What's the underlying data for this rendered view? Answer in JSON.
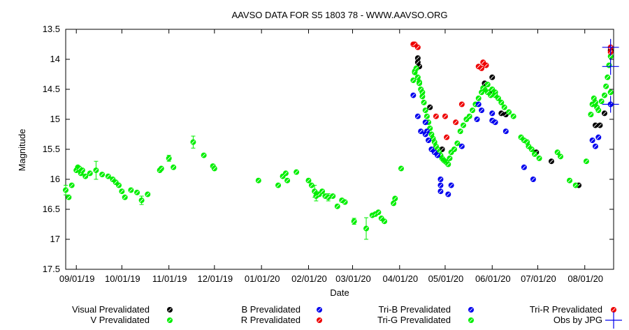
{
  "chart_data": {
    "type": "scatter",
    "title": "AAVSO DATA FOR S5 1803 78 - WWW.AAVSO.ORG",
    "xlabel": "Date",
    "ylabel": "Magnitude",
    "x_type": "date",
    "xlim": [
      "2019-08-25",
      "2020-08-20"
    ],
    "ylim": [
      17.5,
      13.5
    ],
    "y_inverted": true,
    "x_ticks": [
      {
        "date": "2019-09-01",
        "label": "09/01/19"
      },
      {
        "date": "2019-10-01",
        "label": "10/01/19"
      },
      {
        "date": "2019-11-01",
        "label": "11/01/19"
      },
      {
        "date": "2019-12-01",
        "label": "12/01/19"
      },
      {
        "date": "2020-01-01",
        "label": "01/01/20"
      },
      {
        "date": "2020-02-01",
        "label": "02/01/20"
      },
      {
        "date": "2020-03-01",
        "label": "03/01/20"
      },
      {
        "date": "2020-04-01",
        "label": "04/01/20"
      },
      {
        "date": "2020-05-01",
        "label": "05/01/20"
      },
      {
        "date": "2020-06-01",
        "label": "06/01/20"
      },
      {
        "date": "2020-07-01",
        "label": "07/01/20"
      },
      {
        "date": "2020-08-01",
        "label": "08/01/20"
      }
    ],
    "y_ticks": [
      {
        "value": 13.5,
        "label": "13.5"
      },
      {
        "value": 14,
        "label": "14"
      },
      {
        "value": 14.5,
        "label": "14.5"
      },
      {
        "value": 15,
        "label": "15"
      },
      {
        "value": 15.5,
        "label": "15.5"
      },
      {
        "value": 16,
        "label": "16"
      },
      {
        "value": 16.5,
        "label": "16.5"
      },
      {
        "value": 17,
        "label": "17"
      },
      {
        "value": 17.5,
        "label": "17.5"
      }
    ],
    "grid": false,
    "legend_position": "bottom",
    "series": [
      {
        "name": "Visual Prevalidated",
        "color": "#000000",
        "points": [
          [
            "2020-04-13",
            13.98
          ],
          [
            "2020-04-13",
            14.05
          ],
          [
            "2020-04-14",
            14.12
          ],
          [
            "2020-04-21",
            14.8
          ],
          [
            "2020-04-29",
            15.5
          ],
          [
            "2020-05-27",
            14.4
          ],
          [
            "2020-05-30",
            14.55
          ],
          [
            "2020-06-01",
            14.3
          ],
          [
            "2020-06-07",
            14.9
          ],
          [
            "2020-06-10",
            14.92
          ],
          [
            "2020-06-30",
            15.55
          ],
          [
            "2020-07-10",
            15.7
          ],
          [
            "2020-07-28",
            16.1
          ],
          [
            "2020-08-08",
            15.1
          ],
          [
            "2020-08-11",
            15.1
          ],
          [
            "2020-08-14",
            14.9
          ],
          [
            "2020-08-18",
            13.85
          ]
        ]
      },
      {
        "name": "V Prevalidated",
        "color": "#00ee00",
        "points": [
          [
            "2019-08-25",
            16.18
          ],
          [
            "2019-08-27",
            16.3
          ],
          [
            "2019-08-29",
            16.1
          ],
          [
            "2019-09-01",
            15.85
          ],
          [
            "2019-09-02",
            15.8
          ],
          [
            "2019-09-03",
            15.82
          ],
          [
            "2019-09-04",
            15.9
          ],
          [
            "2019-09-05",
            15.85
          ],
          [
            "2019-09-07",
            15.95
          ],
          [
            "2019-09-10",
            15.9
          ],
          [
            "2019-09-14",
            15.85
          ],
          [
            "2019-09-18",
            15.92
          ],
          [
            "2019-09-22",
            15.95
          ],
          [
            "2019-09-25",
            16.0
          ],
          [
            "2019-09-27",
            16.05
          ],
          [
            "2019-09-29",
            16.1
          ],
          [
            "2019-10-01",
            16.2
          ],
          [
            "2019-10-03",
            16.3
          ],
          [
            "2019-10-07",
            16.18
          ],
          [
            "2019-10-11",
            16.22
          ],
          [
            "2019-10-14",
            16.35
          ],
          [
            "2019-10-18",
            16.25
          ],
          [
            "2019-10-26",
            15.85
          ],
          [
            "2019-10-27",
            15.82
          ],
          [
            "2019-11-01",
            15.65
          ],
          [
            "2019-11-04",
            15.8
          ],
          [
            "2019-11-17",
            15.38
          ],
          [
            "2019-11-24",
            15.6
          ],
          [
            "2019-11-30",
            15.78
          ],
          [
            "2019-12-01",
            15.82
          ],
          [
            "2019-12-30",
            16.02
          ],
          [
            "2020-01-12",
            16.1
          ],
          [
            "2020-01-15",
            15.95
          ],
          [
            "2020-01-17",
            15.9
          ],
          [
            "2020-01-18",
            16.02
          ],
          [
            "2020-01-24",
            15.88
          ],
          [
            "2020-02-01",
            16.02
          ],
          [
            "2020-02-03",
            16.1
          ],
          [
            "2020-02-05",
            16.2
          ],
          [
            "2020-02-06",
            16.28
          ],
          [
            "2020-02-08",
            16.25
          ],
          [
            "2020-02-10",
            16.2
          ],
          [
            "2020-02-12",
            16.28
          ],
          [
            "2020-02-14",
            16.3
          ],
          [
            "2020-02-17",
            16.28
          ],
          [
            "2020-02-20",
            16.45
          ],
          [
            "2020-02-23",
            16.35
          ],
          [
            "2020-02-25",
            16.38
          ],
          [
            "2020-03-02",
            16.7
          ],
          [
            "2020-03-10",
            16.82
          ],
          [
            "2020-03-14",
            16.6
          ],
          [
            "2020-03-16",
            16.58
          ],
          [
            "2020-03-18",
            16.55
          ],
          [
            "2020-03-20",
            16.65
          ],
          [
            "2020-03-22",
            16.7
          ],
          [
            "2020-03-28",
            16.4
          ],
          [
            "2020-03-29",
            16.32
          ],
          [
            "2020-04-02",
            15.82
          ],
          [
            "2020-04-10",
            14.35
          ],
          [
            "2020-04-11",
            14.22
          ],
          [
            "2020-04-12",
            14.15
          ],
          [
            "2020-04-13",
            14.3
          ],
          [
            "2020-04-14",
            14.38
          ],
          [
            "2020-04-15",
            14.5
          ],
          [
            "2020-04-16",
            14.62
          ],
          [
            "2020-04-17",
            14.72
          ],
          [
            "2020-04-18",
            14.85
          ],
          [
            "2020-04-19",
            14.95
          ],
          [
            "2020-04-20",
            15.05
          ],
          [
            "2020-04-21",
            15.15
          ],
          [
            "2020-04-22",
            15.25
          ],
          [
            "2020-04-23",
            15.32
          ],
          [
            "2020-04-24",
            15.38
          ],
          [
            "2020-04-25",
            15.45
          ],
          [
            "2020-04-26",
            15.5
          ],
          [
            "2020-04-27",
            15.55
          ],
          [
            "2020-04-28",
            15.6
          ],
          [
            "2020-04-29",
            15.65
          ],
          [
            "2020-04-30",
            15.68
          ],
          [
            "2020-05-01",
            15.7
          ],
          [
            "2020-05-02",
            15.72
          ],
          [
            "2020-05-03",
            15.75
          ],
          [
            "2020-05-04",
            15.65
          ],
          [
            "2020-05-05",
            15.55
          ],
          [
            "2020-05-07",
            15.5
          ],
          [
            "2020-05-09",
            15.4
          ],
          [
            "2020-05-11",
            15.2
          ],
          [
            "2020-05-13",
            15.1
          ],
          [
            "2020-05-15",
            15.0
          ],
          [
            "2020-05-17",
            14.95
          ],
          [
            "2020-05-19",
            14.85
          ],
          [
            "2020-05-21",
            14.75
          ],
          [
            "2020-05-23",
            14.65
          ],
          [
            "2020-05-25",
            14.55
          ],
          [
            "2020-05-27",
            14.5
          ],
          [
            "2020-05-29",
            14.55
          ],
          [
            "2020-05-31",
            14.6
          ],
          [
            "2020-06-01",
            14.5
          ],
          [
            "2020-06-03",
            14.55
          ],
          [
            "2020-06-05",
            14.65
          ],
          [
            "2020-06-07",
            14.72
          ],
          [
            "2020-06-09",
            14.8
          ],
          [
            "2020-06-12",
            14.88
          ],
          [
            "2020-06-15",
            14.95
          ],
          [
            "2020-06-20",
            15.3
          ],
          [
            "2020-06-22",
            15.35
          ],
          [
            "2020-06-24",
            15.38
          ],
          [
            "2020-06-25",
            15.45
          ],
          [
            "2020-06-27",
            15.5
          ],
          [
            "2020-06-29",
            15.58
          ],
          [
            "2020-07-02",
            15.65
          ],
          [
            "2020-07-14",
            15.55
          ],
          [
            "2020-07-16",
            15.62
          ],
          [
            "2020-07-22",
            16.02
          ],
          [
            "2020-07-26",
            16.1
          ],
          [
            "2020-08-02",
            15.7
          ],
          [
            "2020-08-05",
            14.92
          ],
          [
            "2020-08-06",
            14.75
          ],
          [
            "2020-08-07",
            14.65
          ],
          [
            "2020-08-08",
            14.72
          ],
          [
            "2020-08-09",
            14.8
          ],
          [
            "2020-08-10",
            14.85
          ],
          [
            "2020-08-12",
            14.7
          ],
          [
            "2020-08-14",
            14.6
          ],
          [
            "2020-08-15",
            14.45
          ],
          [
            "2020-08-16",
            14.3
          ],
          [
            "2020-08-17",
            14.1
          ],
          [
            "2020-08-18",
            13.95
          ]
        ],
        "error_bars": [
          [
            "2019-08-25",
            16.18,
            0.08
          ],
          [
            "2019-09-14",
            15.85,
            0.15
          ],
          [
            "2019-10-14",
            16.35,
            0.07
          ],
          [
            "2019-11-01",
            15.65,
            0.05
          ],
          [
            "2019-11-17",
            15.38,
            0.1
          ],
          [
            "2020-02-05",
            16.2,
            0.1
          ],
          [
            "2020-02-06",
            16.28,
            0.08
          ],
          [
            "2020-02-14",
            16.3,
            0.06
          ],
          [
            "2020-03-02",
            16.7,
            0.05
          ],
          [
            "2020-03-10",
            16.82,
            0.18
          ]
        ]
      },
      {
        "name": "B Prevalidated",
        "color": "#0000ee",
        "points": [
          [
            "2020-04-18",
            15.05
          ],
          [
            "2020-04-19",
            15.2
          ],
          [
            "2020-04-20",
            15.35
          ],
          [
            "2020-04-22",
            15.5
          ],
          [
            "2020-04-24",
            15.55
          ],
          [
            "2020-04-26",
            15.6
          ],
          [
            "2020-04-28",
            16.0
          ],
          [
            "2020-04-28",
            16.1
          ],
          [
            "2020-04-28",
            16.2
          ],
          [
            "2020-05-03",
            16.25
          ],
          [
            "2020-05-05",
            16.1
          ],
          [
            "2020-05-12",
            15.45
          ],
          [
            "2020-05-22",
            15.0
          ],
          [
            "2020-05-25",
            14.85
          ],
          [
            "2020-06-01",
            15.02
          ],
          [
            "2020-06-10",
            15.2
          ],
          [
            "2020-06-22",
            15.8
          ],
          [
            "2020-06-28",
            16.0
          ],
          [
            "2020-08-06",
            15.35
          ],
          [
            "2020-08-08",
            15.45
          ],
          [
            "2020-08-10",
            15.3
          ]
        ]
      },
      {
        "name": "R Prevalidated",
        "color": "#ee0000",
        "points": [
          [
            "2020-04-25",
            14.95
          ],
          [
            "2020-05-01",
            14.95
          ],
          [
            "2020-05-02",
            15.3
          ],
          [
            "2020-05-08",
            15.05
          ],
          [
            "2020-05-12",
            14.75
          ],
          [
            "2020-05-23",
            14.12
          ],
          [
            "2020-05-25",
            14.15
          ],
          [
            "2020-05-26",
            14.05
          ],
          [
            "2020-05-28",
            14.1
          ]
        ]
      },
      {
        "name": "Tri-B Prevalidated",
        "color": "#0000ee",
        "points": [
          [
            "2020-04-10",
            14.6
          ],
          [
            "2020-04-13",
            14.95
          ],
          [
            "2020-04-15",
            15.2
          ],
          [
            "2020-04-18",
            15.25
          ],
          [
            "2020-05-23",
            14.75
          ],
          [
            "2020-06-01",
            14.9
          ],
          [
            "2020-06-03",
            15.05
          ],
          [
            "2020-08-18",
            14.75
          ]
        ]
      },
      {
        "name": "Tri-G Prevalidated",
        "color": "#00ee00",
        "points": [
          [
            "2020-04-11",
            14.2
          ],
          [
            "2020-04-12",
            14.15
          ],
          [
            "2020-04-14",
            14.4
          ],
          [
            "2020-04-16",
            14.55
          ],
          [
            "2020-05-26",
            14.48
          ],
          [
            "2020-05-29",
            14.42
          ],
          [
            "2020-06-03",
            14.6
          ],
          [
            "2020-08-18",
            14.55
          ]
        ]
      },
      {
        "name": "Tri-R Prevalidated",
        "color": "#ee0000",
        "points": [
          [
            "2020-04-10",
            13.75
          ],
          [
            "2020-04-11",
            13.75
          ],
          [
            "2020-04-13",
            13.8
          ],
          [
            "2020-08-18",
            13.8
          ],
          [
            "2020-08-18",
            13.88
          ]
        ]
      },
      {
        "name": "Obs by JPG",
        "color": "#0000ee",
        "marker": "cross",
        "points": [
          [
            "2020-08-18",
            13.8
          ],
          [
            "2020-08-18",
            14.12
          ],
          [
            "2020-08-18",
            14.75
          ]
        ]
      }
    ]
  }
}
